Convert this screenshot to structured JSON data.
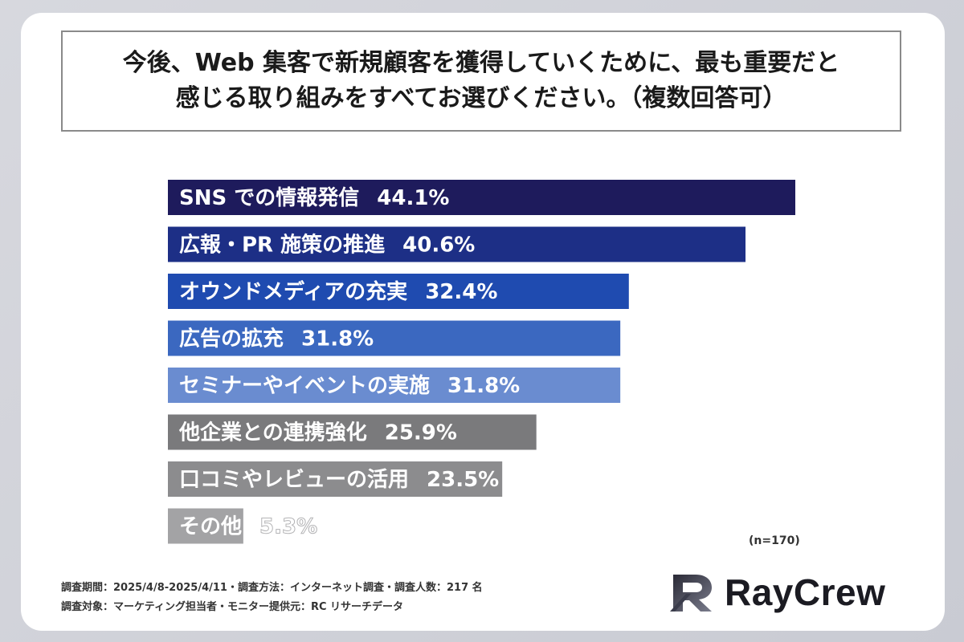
{
  "question": {
    "line1": "今後、Web 集客で新規顧客を獲得していくために、最も重要だと",
    "line2": "感じる取り組みをすべてお選びください。（複数回答可）"
  },
  "chart_data": {
    "type": "bar",
    "orientation": "horizontal",
    "categories": [
      "SNS での情報発信",
      "広報・PR 施策の推進",
      "オウンドメディアの充実",
      "広告の拡充",
      "セミナーやイベントの実施",
      "他企業との連携強化",
      "口コミやレビューの活用",
      "その他"
    ],
    "values": [
      44.1,
      40.6,
      32.4,
      31.8,
      31.8,
      25.9,
      23.5,
      5.3
    ],
    "value_labels": [
      "44.1%",
      "40.6%",
      "32.4%",
      "31.8%",
      "31.8%",
      "25.9%",
      "23.5%",
      "5.3%"
    ],
    "colors": [
      "#1e1b5c",
      "#1d2f86",
      "#1f4bb0",
      "#3b68c0",
      "#6a8cd0",
      "#7a7a7c",
      "#8c8c8e",
      "#a3a3a5"
    ],
    "xlim": [
      0,
      45
    ]
  },
  "note": "(n=170)",
  "footer": {
    "line1": "調査期間：2025/4/8-2025/4/11・調査方法：インターネット調査・調査人数：217 名",
    "line2": "調査対象：マーケティング担当者・モニター提供元：RC リサーチデータ"
  },
  "brand": {
    "name": "RayCrew",
    "icon": "raycrew-logo-icon"
  }
}
